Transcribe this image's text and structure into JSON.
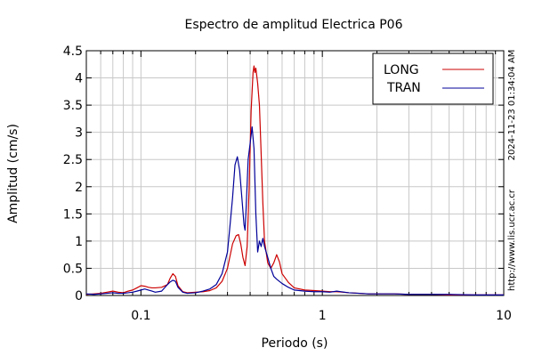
{
  "chart_data": {
    "type": "line",
    "title": "Espectro de amplitud Electrica P06",
    "xlabel": "Periodo (s)",
    "ylabel": "Amplitud (cm/s)",
    "x_scale": "log",
    "xlim": [
      0.05,
      10
    ],
    "ylim": [
      0,
      4.5
    ],
    "x_ticks": [
      {
        "value": 0.1,
        "label": "0.1"
      },
      {
        "value": 1,
        "label": "1"
      },
      {
        "value": 10,
        "label": "10"
      }
    ],
    "y_ticks": [
      {
        "value": 0,
        "label": "0"
      },
      {
        "value": 0.5,
        "label": "0.5"
      },
      {
        "value": 1,
        "label": "1"
      },
      {
        "value": 1.5,
        "label": "1.5"
      },
      {
        "value": 2,
        "label": "2"
      },
      {
        "value": 2.5,
        "label": "2.5"
      },
      {
        "value": 3,
        "label": "3"
      },
      {
        "value": 3.5,
        "label": "3.5"
      },
      {
        "value": 4,
        "label": "4"
      },
      {
        "value": 4.5,
        "label": "4.5"
      }
    ],
    "grid": true,
    "legend_position": "top-right",
    "series": [
      {
        "name": "LONG",
        "color": "#cc0000",
        "x": [
          0.05,
          0.055,
          0.06,
          0.065,
          0.07,
          0.075,
          0.08,
          0.085,
          0.09,
          0.095,
          0.1,
          0.105,
          0.11,
          0.115,
          0.12,
          0.13,
          0.14,
          0.145,
          0.15,
          0.155,
          0.16,
          0.17,
          0.18,
          0.2,
          0.22,
          0.24,
          0.26,
          0.28,
          0.3,
          0.32,
          0.335,
          0.345,
          0.355,
          0.365,
          0.375,
          0.385,
          0.395,
          0.405,
          0.415,
          0.42,
          0.425,
          0.43,
          0.44,
          0.45,
          0.46,
          0.47,
          0.48,
          0.5,
          0.52,
          0.54,
          0.56,
          0.58,
          0.6,
          0.65,
          0.7,
          0.8,
          0.9,
          1.0,
          1.1,
          1.2,
          1.4,
          1.6,
          1.8,
          2.0,
          2.2,
          2.5,
          3.0,
          4.0,
          5.0,
          7.0,
          10.0
        ],
        "y": [
          0.02,
          0.03,
          0.04,
          0.06,
          0.08,
          0.06,
          0.05,
          0.08,
          0.1,
          0.14,
          0.18,
          0.17,
          0.15,
          0.14,
          0.14,
          0.15,
          0.2,
          0.32,
          0.4,
          0.35,
          0.18,
          0.07,
          0.05,
          0.06,
          0.07,
          0.09,
          0.14,
          0.26,
          0.5,
          0.95,
          1.1,
          1.12,
          0.95,
          0.7,
          0.55,
          0.9,
          2.0,
          3.4,
          4.1,
          4.22,
          4.1,
          4.18,
          3.9,
          3.5,
          2.6,
          1.7,
          1.0,
          0.6,
          0.5,
          0.6,
          0.75,
          0.62,
          0.4,
          0.24,
          0.14,
          0.1,
          0.09,
          0.08,
          0.07,
          0.07,
          0.05,
          0.04,
          0.03,
          0.03,
          0.03,
          0.03,
          0.02,
          0.02,
          0.01,
          0.01,
          0.01
        ]
      },
      {
        "name": "TRAN",
        "color": "#000099",
        "x": [
          0.05,
          0.055,
          0.06,
          0.065,
          0.07,
          0.075,
          0.08,
          0.085,
          0.09,
          0.095,
          0.1,
          0.105,
          0.11,
          0.115,
          0.12,
          0.13,
          0.14,
          0.145,
          0.15,
          0.155,
          0.16,
          0.17,
          0.18,
          0.2,
          0.22,
          0.24,
          0.26,
          0.28,
          0.3,
          0.31,
          0.32,
          0.33,
          0.34,
          0.35,
          0.36,
          0.37,
          0.375,
          0.38,
          0.39,
          0.4,
          0.41,
          0.42,
          0.43,
          0.44,
          0.45,
          0.46,
          0.47,
          0.48,
          0.5,
          0.52,
          0.54,
          0.56,
          0.6,
          0.65,
          0.7,
          0.8,
          0.9,
          1.0,
          1.1,
          1.2,
          1.4,
          1.6,
          1.8,
          2.0,
          2.5,
          3.0,
          4.0,
          5.0,
          7.0,
          10.0
        ],
        "y": [
          0.03,
          0.02,
          0.03,
          0.04,
          0.05,
          0.04,
          0.04,
          0.05,
          0.06,
          0.08,
          0.1,
          0.12,
          0.1,
          0.08,
          0.06,
          0.08,
          0.2,
          0.25,
          0.28,
          0.26,
          0.15,
          0.06,
          0.04,
          0.05,
          0.08,
          0.12,
          0.2,
          0.4,
          0.8,
          1.3,
          1.8,
          2.4,
          2.55,
          2.3,
          1.8,
          1.3,
          1.2,
          1.6,
          2.5,
          2.8,
          3.1,
          2.7,
          1.5,
          0.8,
          1.0,
          0.9,
          1.05,
          0.9,
          0.7,
          0.5,
          0.35,
          0.3,
          0.22,
          0.15,
          0.1,
          0.08,
          0.07,
          0.07,
          0.06,
          0.08,
          0.05,
          0.04,
          0.03,
          0.03,
          0.03,
          0.02,
          0.02,
          0.02,
          0.01,
          0.01
        ]
      }
    ],
    "annotations": [
      "2024-11-23 01:34:04 AM",
      "http://www.lis.ucr.ac.cr"
    ]
  }
}
